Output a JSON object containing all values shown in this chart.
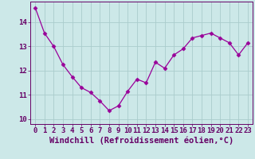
{
  "x": [
    0,
    1,
    2,
    3,
    4,
    5,
    6,
    7,
    8,
    9,
    10,
    11,
    12,
    13,
    14,
    15,
    16,
    17,
    18,
    19,
    20,
    21,
    22,
    23
  ],
  "y": [
    14.6,
    13.55,
    13.0,
    12.25,
    11.75,
    11.3,
    11.1,
    10.75,
    10.35,
    10.55,
    11.15,
    11.65,
    11.5,
    12.35,
    12.1,
    12.65,
    12.9,
    13.35,
    13.45,
    13.55,
    13.35,
    13.15,
    12.65,
    13.15
  ],
  "line_color": "#990099",
  "marker": "D",
  "marker_size": 2.5,
  "bg_color": "#cce8e8",
  "grid_color": "#aacccc",
  "xlabel": "Windchill (Refroidissement éolien,°C)",
  "xlabel_color": "#660066",
  "ylim": [
    9.8,
    14.85
  ],
  "xlim": [
    -0.5,
    23.5
  ],
  "yticks": [
    10,
    11,
    12,
    13,
    14
  ],
  "xticks": [
    0,
    1,
    2,
    3,
    4,
    5,
    6,
    7,
    8,
    9,
    10,
    11,
    12,
    13,
    14,
    15,
    16,
    17,
    18,
    19,
    20,
    21,
    22,
    23
  ],
  "tick_color": "#660066",
  "tick_fontsize": 6.5,
  "xlabel_fontsize": 7.5
}
